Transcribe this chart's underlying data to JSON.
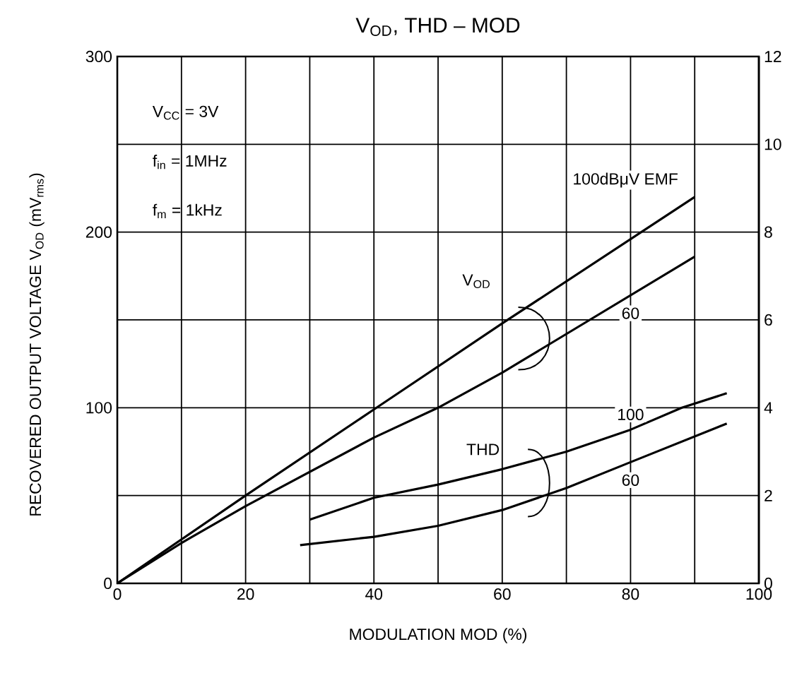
{
  "chart_data": {
    "type": "line",
    "title": "V$_{OD}$, THD  –  MOD",
    "xlabel": "MODULATION    MOD    (%)",
    "ylabel": "RECOVERED OUTPUT VOLTAGE    V$_{OD}$    (mV$_{rms}$)",
    "xlim": [
      0,
      100
    ],
    "xticks": [
      0,
      {
        "value": 10,
        "label": null
      },
      20,
      {
        "value": 30,
        "label": null
      },
      40,
      {
        "value": 50,
        "label": null
      },
      60,
      {
        "value": 70,
        "label": null
      },
      80,
      {
        "value": 90,
        "label": null
      },
      100
    ],
    "ylim": [
      0,
      300
    ],
    "yticks": [
      0,
      {
        "value": 50,
        "label": null
      },
      100,
      {
        "value": 150,
        "label": null
      },
      200,
      {
        "value": 250,
        "label": null
      },
      300
    ],
    "y2lim": [
      0,
      12
    ],
    "y2ticks": [
      0,
      2,
      4,
      6,
      8,
      10,
      12
    ],
    "grid": true,
    "series": [
      {
        "name": "100dBμV EMF",
        "color": "#000000",
        "x": [
          0,
          10,
          20,
          40,
          60,
          90
        ],
        "values": [
          0,
          25,
          50,
          99,
          148,
          220
        ]
      },
      {
        "name": "60",
        "color": "#000000",
        "x": [
          0,
          10,
          20,
          40,
          50,
          60,
          90
        ],
        "values": [
          0,
          23,
          44,
          83,
          100,
          120,
          186
        ]
      },
      {
        "name": "100",
        "axis": "y2",
        "color": "#000000",
        "x": [
          30,
          40,
          50,
          60,
          70,
          80,
          88,
          95
        ],
        "values": [
          1.45,
          1.95,
          2.25,
          2.6,
          3.0,
          3.5,
          4.0,
          4.33
        ]
      },
      {
        "name": "60",
        "axis": "y2",
        "color": "#000000",
        "x": [
          28.5,
          40,
          50,
          60,
          70,
          80,
          95
        ],
        "values": [
          0.87,
          1.06,
          1.31,
          1.67,
          2.17,
          2.76,
          3.64
        ]
      }
    ],
    "annotations": [
      "V$_{CC}$ = 3V",
      "f$_{in}$ = 1MHz",
      "f$_{m}$ = 1kHz",
      "V$_{OD}$",
      "THD"
    ]
  }
}
